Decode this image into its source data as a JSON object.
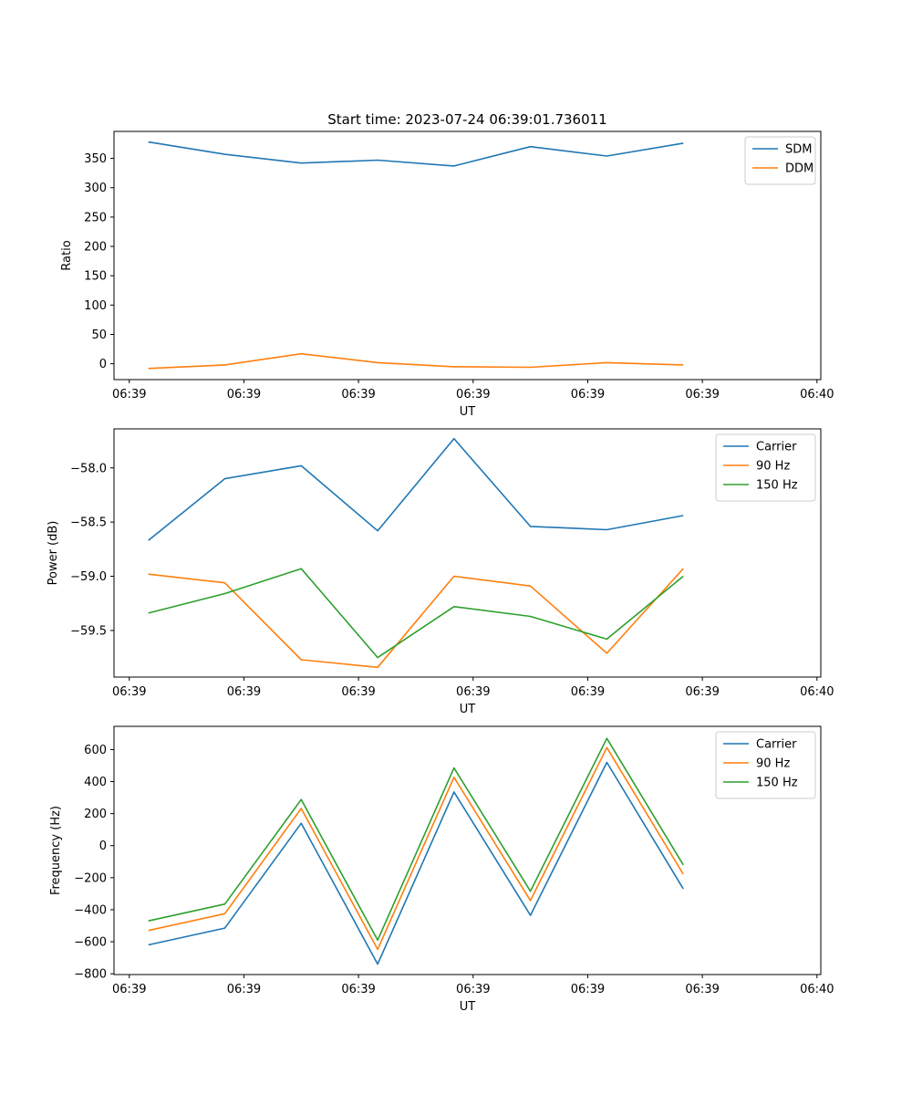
{
  "colors": {
    "blue": "#1f77b4",
    "orange": "#ff7f0e",
    "green": "#2ca02c"
  },
  "chart_data": [
    {
      "type": "line",
      "title": "Start time: 2023-07-24 06:39:01.736011",
      "xlabel": "UT",
      "ylabel": "Ratio",
      "x": [
        1,
        2,
        3,
        4,
        5,
        6,
        7,
        8
      ],
      "xlim": [
        0.55,
        9.8
      ],
      "xticks": [
        {
          "value": 0.75,
          "label": "06:39"
        },
        {
          "value": 2.25,
          "label": "06:39"
        },
        {
          "value": 3.75,
          "label": "06:39"
        },
        {
          "value": 5.25,
          "label": "06:39"
        },
        {
          "value": 6.75,
          "label": "06:39"
        },
        {
          "value": 8.25,
          "label": "06:39"
        },
        {
          "value": 9.75,
          "label": "06:40"
        }
      ],
      "ylim": [
        -27,
        396
      ],
      "yticks": [
        {
          "value": 0,
          "label": "0"
        },
        {
          "value": 50,
          "label": "50"
        },
        {
          "value": 100,
          "label": "100"
        },
        {
          "value": 150,
          "label": "150"
        },
        {
          "value": 200,
          "label": "200"
        },
        {
          "value": 250,
          "label": "250"
        },
        {
          "value": 300,
          "label": "300"
        },
        {
          "value": 350,
          "label": "350"
        }
      ],
      "legend_position": "top-right",
      "series": [
        {
          "name": "SDM",
          "color": "#1f77b4",
          "values": [
            378,
            357,
            342,
            347,
            337,
            370,
            354,
            376
          ]
        },
        {
          "name": "DDM",
          "color": "#ff7f0e",
          "values": [
            -8,
            -2,
            17,
            2,
            -5,
            -6,
            2,
            -2
          ]
        }
      ]
    },
    {
      "type": "line",
      "title": "",
      "xlabel": "UT",
      "ylabel": "Power (dB)",
      "x": [
        1,
        2,
        3,
        4,
        5,
        6,
        7,
        8
      ],
      "xlim": [
        0.55,
        9.8
      ],
      "xticks": [
        {
          "value": 0.75,
          "label": "06:39"
        },
        {
          "value": 2.25,
          "label": "06:39"
        },
        {
          "value": 3.75,
          "label": "06:39"
        },
        {
          "value": 5.25,
          "label": "06:39"
        },
        {
          "value": 6.75,
          "label": "06:39"
        },
        {
          "value": 8.25,
          "label": "06:39"
        },
        {
          "value": 9.75,
          "label": "06:40"
        }
      ],
      "ylim": [
        -59.93,
        -57.64
      ],
      "yticks": [
        {
          "value": -59.5,
          "label": "−59.5"
        },
        {
          "value": -59.0,
          "label": "−59.0"
        },
        {
          "value": -58.5,
          "label": "−58.5"
        },
        {
          "value": -58.0,
          "label": "−58.0"
        }
      ],
      "legend_position": "top-right",
      "series": [
        {
          "name": "Carrier",
          "color": "#1f77b4",
          "values": [
            -58.67,
            -58.1,
            -57.98,
            -58.58,
            -57.73,
            -58.54,
            -58.57,
            -58.44
          ]
        },
        {
          "name": "90 Hz",
          "color": "#ff7f0e",
          "values": [
            -58.98,
            -59.06,
            -59.77,
            -59.84,
            -59.0,
            -59.09,
            -59.71,
            -58.93
          ]
        },
        {
          "name": "150 Hz",
          "color": "#2ca02c",
          "values": [
            -59.34,
            -59.16,
            -58.93,
            -59.75,
            -59.28,
            -59.37,
            -59.58,
            -59.0
          ]
        }
      ]
    },
    {
      "type": "line",
      "title": "",
      "xlabel": "UT",
      "ylabel": "Frequency (Hz)",
      "x": [
        1,
        2,
        3,
        4,
        5,
        6,
        7,
        8
      ],
      "xlim": [
        0.55,
        9.8
      ],
      "xticks": [
        {
          "value": 0.75,
          "label": "06:39"
        },
        {
          "value": 2.25,
          "label": "06:39"
        },
        {
          "value": 3.75,
          "label": "06:39"
        },
        {
          "value": 5.25,
          "label": "06:39"
        },
        {
          "value": 6.75,
          "label": "06:39"
        },
        {
          "value": 8.25,
          "label": "06:39"
        },
        {
          "value": 9.75,
          "label": "06:40"
        }
      ],
      "ylim": [
        -805,
        745
      ],
      "yticks": [
        {
          "value": -800,
          "label": "−800"
        },
        {
          "value": -600,
          "label": "−600"
        },
        {
          "value": -400,
          "label": "−400"
        },
        {
          "value": -200,
          "label": "−200"
        },
        {
          "value": 0,
          "label": "0"
        },
        {
          "value": 200,
          "label": "200"
        },
        {
          "value": 400,
          "label": "400"
        },
        {
          "value": 600,
          "label": "600"
        }
      ],
      "legend_position": "top-right",
      "series": [
        {
          "name": "Carrier",
          "color": "#1f77b4",
          "values": [
            -620,
            -515,
            140,
            -740,
            335,
            -435,
            520,
            -270
          ]
        },
        {
          "name": "90 Hz",
          "color": "#ff7f0e",
          "values": [
            -530,
            -425,
            232,
            -648,
            427,
            -343,
            612,
            -178
          ]
        },
        {
          "name": "150 Hz",
          "color": "#2ca02c",
          "values": [
            -470,
            -365,
            288,
            -590,
            485,
            -285,
            670,
            -120
          ]
        }
      ]
    }
  ]
}
